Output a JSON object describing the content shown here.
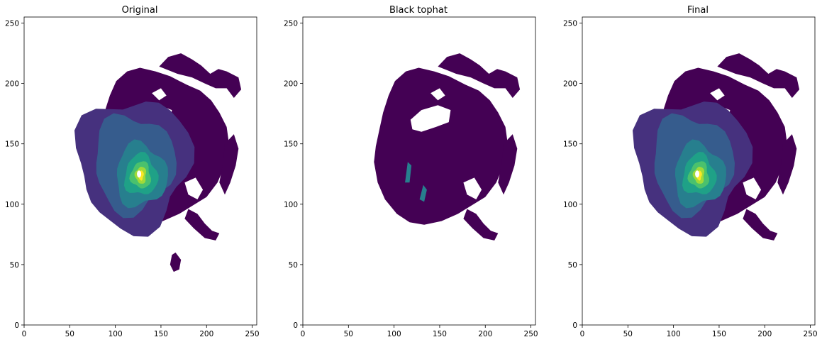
{
  "figure": {
    "background": "#ffffff"
  },
  "colormap": [
    "#440154",
    "#46317e",
    "#365c8d",
    "#277f8e",
    "#1fa187",
    "#4ac16d",
    "#a0da39",
    "#fde725"
  ],
  "chart_data": [
    {
      "type": "heatmap",
      "title": "Original",
      "xlim": [
        0,
        255
      ],
      "ylim": [
        0,
        255
      ],
      "xticks": [
        0,
        50,
        100,
        150,
        200,
        250
      ],
      "yticks": [
        0,
        50,
        100,
        150,
        200,
        250
      ],
      "grid": false,
      "note_levels": "filled contours, viridis colormap, intense core near (128, 124)",
      "features": {
        "outer_extent": {
          "x": [
            75,
            240
          ],
          "y": [
            45,
            225
          ]
        },
        "eye_center": [
          128,
          124
        ]
      }
    },
    {
      "type": "heatmap",
      "title": "Black tophat",
      "xlim": [
        0,
        255
      ],
      "ylim": [
        0,
        255
      ],
      "xticks": [
        0,
        50,
        100,
        150,
        200,
        250
      ],
      "yticks": [
        0,
        50,
        100,
        150,
        200,
        250
      ],
      "grid": false,
      "features": {
        "outer_extent": {
          "x": [
            75,
            235
          ],
          "y": [
            75,
            225
          ]
        },
        "eye_center": [
          118,
          128
        ]
      }
    },
    {
      "type": "heatmap",
      "title": "Final",
      "xlim": [
        0,
        255
      ],
      "ylim": [
        0,
        255
      ],
      "xticks": [
        0,
        50,
        100,
        150,
        200,
        250
      ],
      "yticks": [
        0,
        50,
        100,
        150,
        200,
        250
      ],
      "grid": false,
      "features": {
        "outer_extent": {
          "x": [
            75,
            235
          ],
          "y": [
            75,
            225
          ]
        },
        "eye_center": [
          128,
          124
        ]
      }
    }
  ]
}
